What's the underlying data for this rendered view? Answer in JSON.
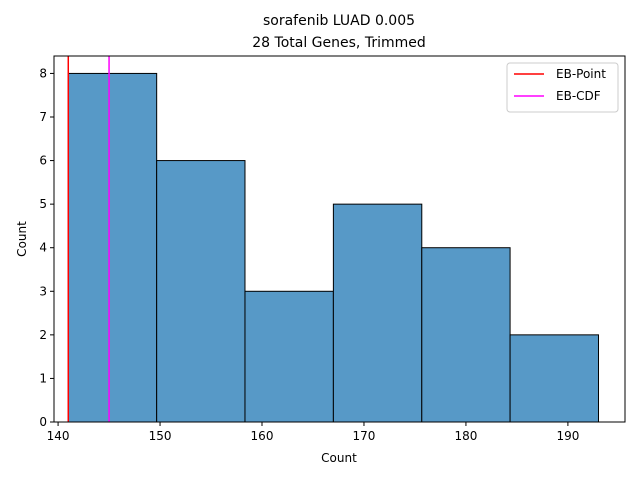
{
  "chart_data": {
    "type": "bar",
    "title": "sorafenib LUAD 0.005",
    "subtitle": "28 Total Genes, Trimmed",
    "xlabel": "Count",
    "ylabel": "Count",
    "xlim": [
      139.6,
      195.6
    ],
    "ylim": [
      0,
      8.4
    ],
    "grid": false,
    "legend_position": "top-right",
    "bins": [
      {
        "x0": 141.0,
        "x1": 149.67,
        "count": 8
      },
      {
        "x0": 149.67,
        "x1": 158.33,
        "count": 6
      },
      {
        "x0": 158.33,
        "x1": 167.0,
        "count": 3
      },
      {
        "x0": 167.0,
        "x1": 175.67,
        "count": 5
      },
      {
        "x0": 175.67,
        "x1": 184.33,
        "count": 4
      },
      {
        "x0": 184.33,
        "x1": 193.0,
        "count": 2
      }
    ],
    "bar_color": "#5799c7",
    "xticks": [
      140,
      150,
      160,
      170,
      180,
      190
    ],
    "yticks": [
      0,
      1,
      2,
      3,
      4,
      5,
      6,
      7,
      8
    ],
    "vlines": [
      {
        "name": "EB-Point",
        "x": 141.0,
        "color": "#ff0000"
      },
      {
        "name": "EB-CDF",
        "x": 145.0,
        "color": "#ff00ff"
      }
    ]
  }
}
